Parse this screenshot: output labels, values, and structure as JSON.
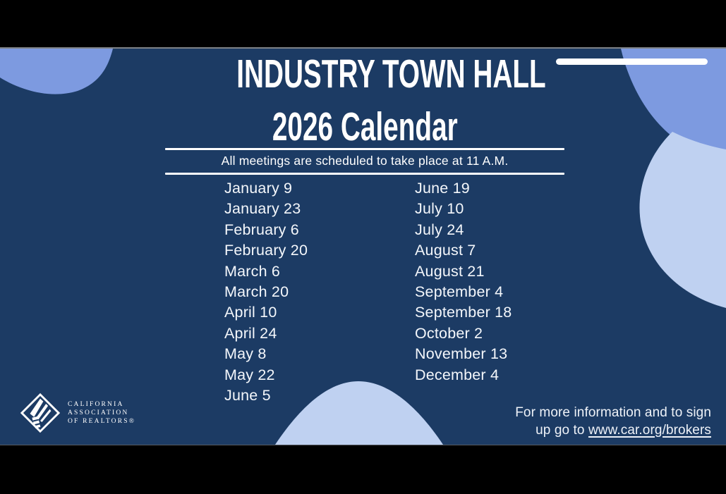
{
  "theme": {
    "slide_bg": "#1c3b64",
    "blob_medium": "#7d9ae0",
    "blob_light": "#bfd1f1",
    "text_color": "#ffffff"
  },
  "title": {
    "line1": "INDUSTRY TOWN HALL",
    "line2": "2026 Calendar"
  },
  "subtitle": "All meetings are scheduled to take place at 11 A.M.",
  "dates": {
    "left": [
      "January 9",
      "January 23",
      "February 6",
      "February 20",
      "March 6",
      "March 20",
      "April 10",
      "April 24",
      "May 8",
      "May 22",
      "June 5"
    ],
    "right": [
      "June 19",
      "July 10",
      "July 24",
      "August 7",
      "August 21",
      "September 4",
      "September 18",
      "October 2",
      "November 13",
      "December 4"
    ]
  },
  "logo": {
    "line1": "CALIFORNIA",
    "line2": "ASSOCIATION",
    "line3": "OF REALTORS®"
  },
  "footer": {
    "line1": "For more information and to sign",
    "line2_prefix": "up go to ",
    "link": "www.car.org/brokers"
  }
}
